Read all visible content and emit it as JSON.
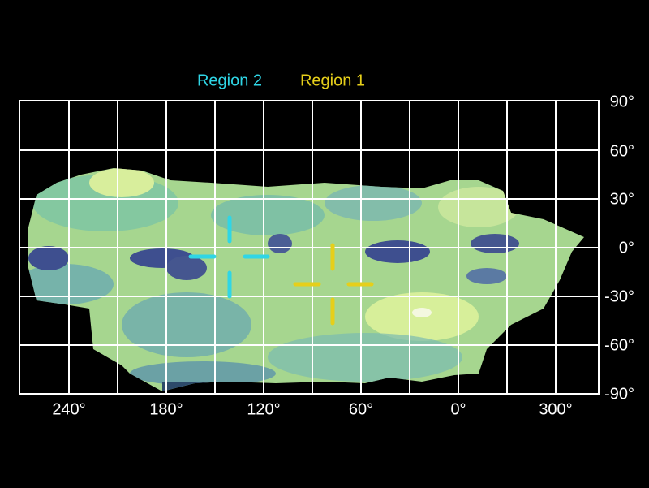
{
  "legend": [
    "Region 2",
    "Region 1"
  ],
  "x_labels": [
    "240°",
    "180°",
    "120°",
    "60°",
    "0°",
    "300°"
  ],
  "y_labels": [
    "90°",
    "60°",
    "30°",
    "0°",
    "-30°",
    "-60°",
    "-90°"
  ]
}
